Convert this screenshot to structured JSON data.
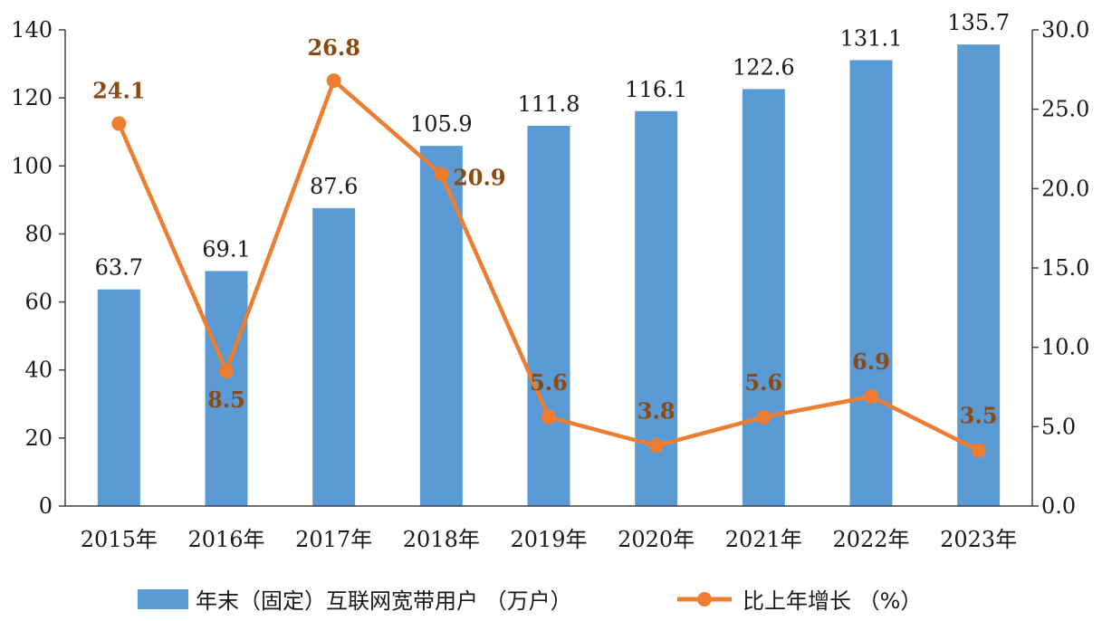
{
  "chart_data": {
    "type": "bar",
    "categories": [
      "2015年",
      "2016年",
      "2017年",
      "2018年",
      "2019年",
      "2020年",
      "2021年",
      "2022年",
      "2023年"
    ],
    "series": [
      {
        "name": "年末（固定）互联网宽带用户 （万户）",
        "type": "bar",
        "axis": "left",
        "color": "#5b9bd5",
        "values": [
          63.7,
          69.1,
          87.6,
          105.9,
          111.8,
          116.1,
          122.6,
          131.1,
          135.7
        ],
        "labels": [
          "63.7",
          "69.1",
          "87.6",
          "105.9",
          "111.8",
          "116.1",
          "122.6",
          "131.1",
          "135.7"
        ]
      },
      {
        "name": "比上年增长 （%）",
        "type": "line",
        "axis": "right",
        "color": "#ed7d31",
        "label_color": "#8a4a12",
        "values": [
          24.1,
          8.5,
          26.8,
          20.9,
          5.6,
          3.8,
          5.6,
          6.9,
          3.5
        ],
        "labels": [
          "24.1",
          "8.5",
          "26.8",
          "20.9",
          "5.6",
          "3.8",
          "5.6",
          "6.9",
          "3.5"
        ]
      }
    ],
    "y_left": {
      "min": 0,
      "max": 140,
      "ticks": [
        "0",
        "20",
        "40",
        "60",
        "80",
        "100",
        "120",
        "140"
      ]
    },
    "y_right": {
      "min": 0,
      "max": 30,
      "ticks": [
        "0.0",
        "5.0",
        "10.0",
        "15.0",
        "20.0",
        "25.0",
        "30.0"
      ]
    },
    "grid": false,
    "legend_position": "bottom"
  }
}
